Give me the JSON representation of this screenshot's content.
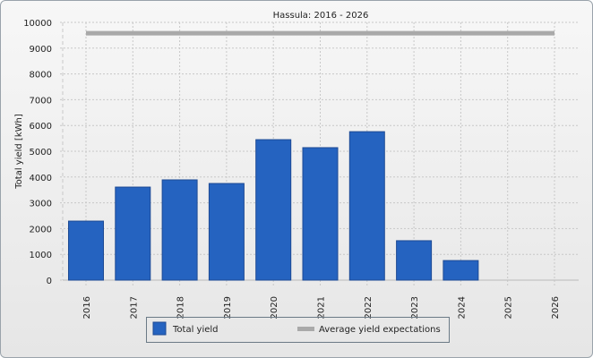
{
  "chart_data": {
    "type": "bar",
    "title": "Hassula: 2016 - 2026",
    "xlabel": "",
    "ylabel": "Total yield [kWh]",
    "ylim": [
      0,
      10000
    ],
    "yticks": [
      0,
      1000,
      2000,
      3000,
      4000,
      5000,
      6000,
      7000,
      8000,
      9000,
      10000
    ],
    "categories": [
      "2016",
      "2017",
      "2018",
      "2019",
      "2020",
      "2021",
      "2022",
      "2023",
      "2024",
      "2025",
      "2026"
    ],
    "series": [
      {
        "name": "Total yield",
        "type": "bar",
        "color": "#2563c0",
        "values": [
          2290,
          3610,
          3890,
          3750,
          5450,
          5140,
          5760,
          1530,
          760,
          0,
          0
        ]
      },
      {
        "name": "Average yield expectations",
        "type": "line",
        "color": "#a9a9a9",
        "values": [
          9580,
          9580,
          9580,
          9580,
          9580,
          9580,
          9580,
          9580,
          9580,
          9580,
          9580
        ]
      }
    ],
    "grid": true,
    "legend": "bottom-center"
  }
}
